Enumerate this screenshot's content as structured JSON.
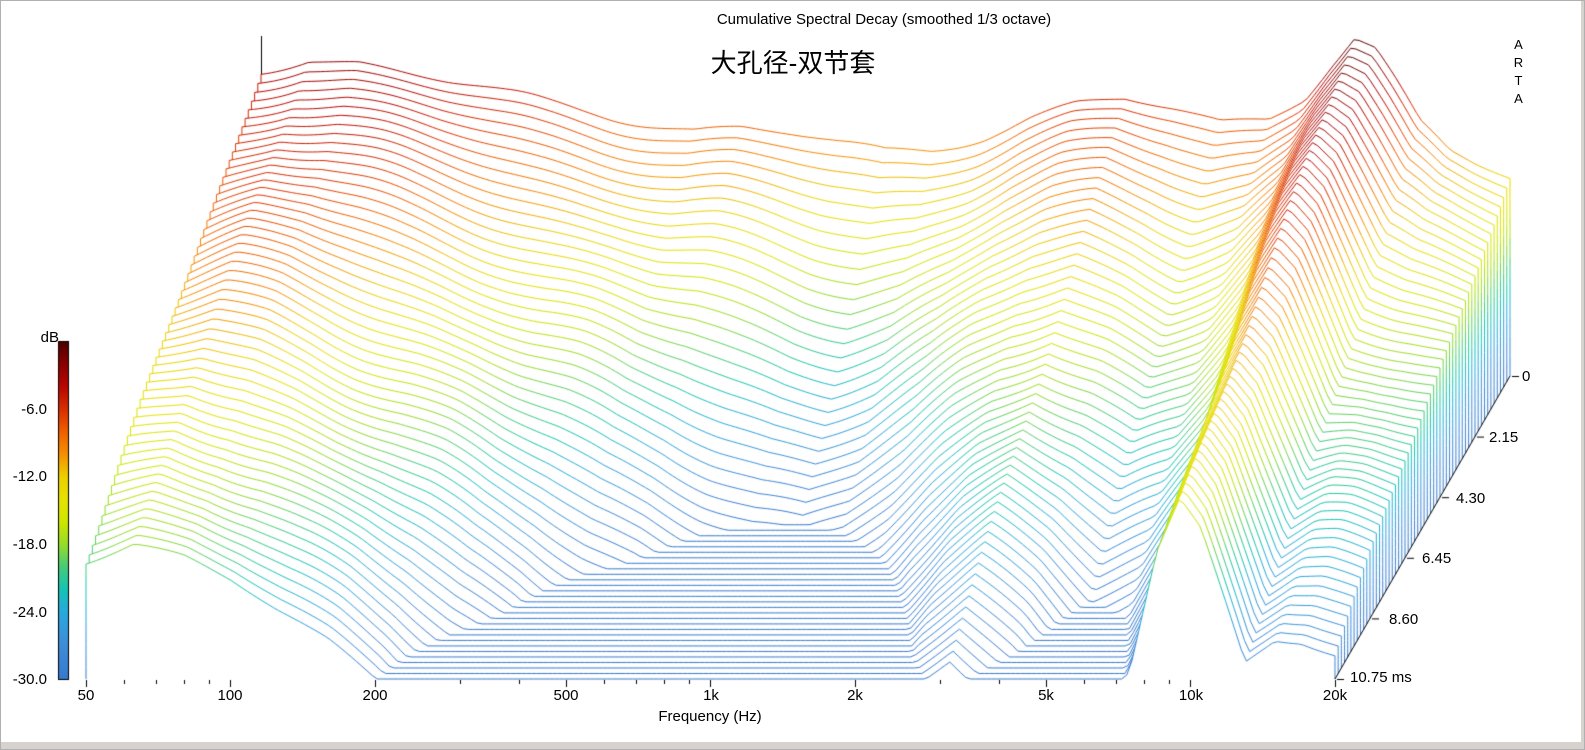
{
  "chart_data": {
    "type": "waterfall",
    "title": "Cumulative Spectral Decay (smoothed 1/3 octave)",
    "subtitle": "大孔径-双节套",
    "brand": "ARTA",
    "xlabel": "Frequency (Hz)",
    "x_tick_labels": [
      "50",
      "100",
      "200",
      "500",
      "1k",
      "2k",
      "5k",
      "10k",
      "20k"
    ],
    "x_tick_values": [
      50,
      100,
      200,
      500,
      1000,
      2000,
      5000,
      10000,
      20000
    ],
    "db_axis": {
      "label": "dB",
      "tick_labels": [
        "-6.0",
        "-12.0",
        "-18.0",
        "-24.0",
        "-30.0"
      ],
      "tick_values": [
        -6,
        -12,
        -18,
        -24,
        -30
      ],
      "max_db": 0,
      "min_db": -30
    },
    "time_axis": {
      "tick_labels": [
        "0",
        "2.15",
        "4.30",
        "6.45",
        "8.60",
        "10.75 ms"
      ],
      "tick_values_ms": [
        0,
        2.15,
        4.3,
        6.45,
        8.6,
        10.75
      ],
      "max_ms": 10.75,
      "unit": "ms"
    },
    "num_slices": 56,
    "floor_db": -30,
    "freq_range_hz": [
      50,
      20000
    ],
    "response": {
      "freq_hz": [
        50,
        63,
        80,
        100,
        125,
        160,
        200,
        250,
        315,
        400,
        500,
        630,
        800,
        1000,
        1250,
        1600,
        2000,
        2500,
        3150,
        4000,
        5000,
        6300,
        7500,
        8500,
        9500,
        10500,
        11500,
        13000,
        15000,
        17000,
        20000
      ],
      "t0_db": [
        -3.0,
        -1.8,
        -2.2,
        -3.2,
        -4.2,
        -5.2,
        -6.0,
        -6.6,
        -7.4,
        -8.2,
        -8.2,
        -8.8,
        -9.6,
        -10.2,
        -9.8,
        -8.6,
        -7.2,
        -6.2,
        -5.8,
        -6.6,
        -7.6,
        -7.0,
        -5.0,
        -2.2,
        0.0,
        -1.2,
        -4.0,
        -8.0,
        -10.5,
        -11.5,
        -12.5
      ],
      "decay_db_per_ms": [
        1.5,
        1.5,
        1.6,
        1.7,
        1.85,
        2.0,
        2.2,
        2.5,
        2.7,
        3.0,
        3.3,
        3.6,
        3.8,
        3.9,
        3.7,
        3.3,
        2.8,
        2.4,
        2.1,
        2.4,
        2.8,
        2.6,
        2.2,
        1.55,
        1.35,
        1.5,
        1.7,
        1.95,
        1.5,
        1.4,
        1.4
      ]
    },
    "colormap": {
      "db": [
        0,
        -2,
        -4,
        -6,
        -8,
        -10,
        -12,
        -14,
        -16,
        -18,
        -20,
        -22,
        -24,
        -27,
        -30
      ],
      "colors": [
        "#4c0000",
        "#8a0000",
        "#b80600",
        "#d92e00",
        "#ef5f00",
        "#f58f00",
        "#ecd000",
        "#e6e200",
        "#cfe600",
        "#97dc28",
        "#46cc78",
        "#14c4b4",
        "#28aadc",
        "#3f8cd8",
        "#3579cf"
      ]
    }
  }
}
